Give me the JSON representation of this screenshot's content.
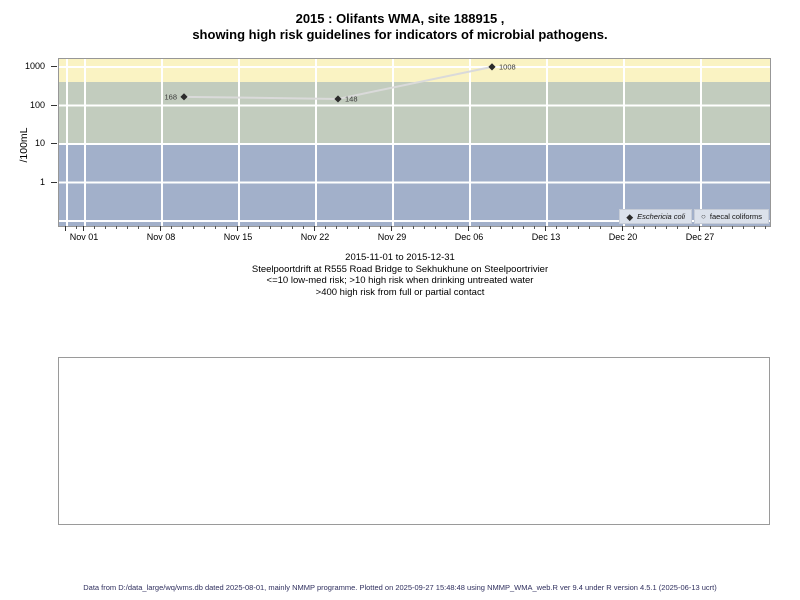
{
  "title": {
    "line1": "2015 : Olifants WMA, site 188915 ,",
    "line2": "showing high risk guidelines for indicators of microbial pathogens."
  },
  "chart_data": {
    "type": "line",
    "title": "2015 : Olifants WMA, site 188915 , showing high risk guidelines for indicators of microbial pathogens.",
    "ylabel": "/100mL",
    "y_scale": "log10",
    "y_ticks": [
      "1000",
      "100",
      "10",
      "1"
    ],
    "x_ticks": [
      "Nov 01",
      "Nov 08",
      "Nov 15",
      "Nov 22",
      "Nov 29",
      "Dec 06",
      "Dec 13",
      "Dec 20",
      "Dec 27"
    ],
    "x_range": [
      "2015-11-01",
      "2015-12-31"
    ],
    "series": [
      {
        "name": "Eschericia coli",
        "marker": "filled-diamond",
        "points": [
          {
            "date": "2015-11-10",
            "day": 9,
            "value": 168,
            "label_side": "left"
          },
          {
            "date": "2015-11-24",
            "day": 23,
            "value": 148,
            "label_side": "right"
          },
          {
            "date": "2015-12-08",
            "day": 37,
            "value": 1008,
            "label_side": "right"
          }
        ]
      },
      {
        "name": "faecal coliforms",
        "marker": "open-circle",
        "points": []
      }
    ],
    "risk_bands": [
      {
        "label": ">400 high risk from full or partial contact",
        "range": ">400",
        "color": "#faf3c3"
      },
      {
        "label": ">10 high risk when drinking untreated water",
        "range": "10-400",
        "color": "#c2ccbe"
      },
      {
        "label": "<=10 low-med risk",
        "range": "<=10",
        "color": "#a2b0ca"
      }
    ],
    "guideline_thresholds": {
      "low_med_max": 10,
      "contact_high_risk_min": 400
    }
  },
  "legend": {
    "items": [
      {
        "label": "Eschericia coli",
        "marker": "filled-diamond"
      },
      {
        "label": "faecal coliforms",
        "marker": "open-circle"
      }
    ]
  },
  "caption": {
    "line1": "2015-11-01 to 2015-12-31",
    "line2": "Steelpoortdrift at R555 Road Bridge to Sekhukhune on Steelpoortrivier",
    "line3": "<=10 low-med risk; >10 high risk when drinking untreated water",
    "line4": ">400 high risk from full or partial contact"
  },
  "footer": {
    "text": "Data from D:/data_large/wq/wms.db dated 2025-08-01, mainly NMMP programme. Plotted on 2025-09-27 15:48:48 using NMMP_WMA_web.R ver 9.4 under R version 4.5.1 (2025-06-13 ucrt)"
  },
  "colors": {
    "band_contact_risk": "#faf3c3",
    "band_drinking_risk": "#c2ccbe",
    "band_low_med": "#a2b0ca",
    "series_line": "#dadada",
    "marker": "#2b2b2b",
    "legend_bg": "#dbe1eb",
    "footer_text": "#2f2f5e",
    "gridline": "#ffffff"
  }
}
